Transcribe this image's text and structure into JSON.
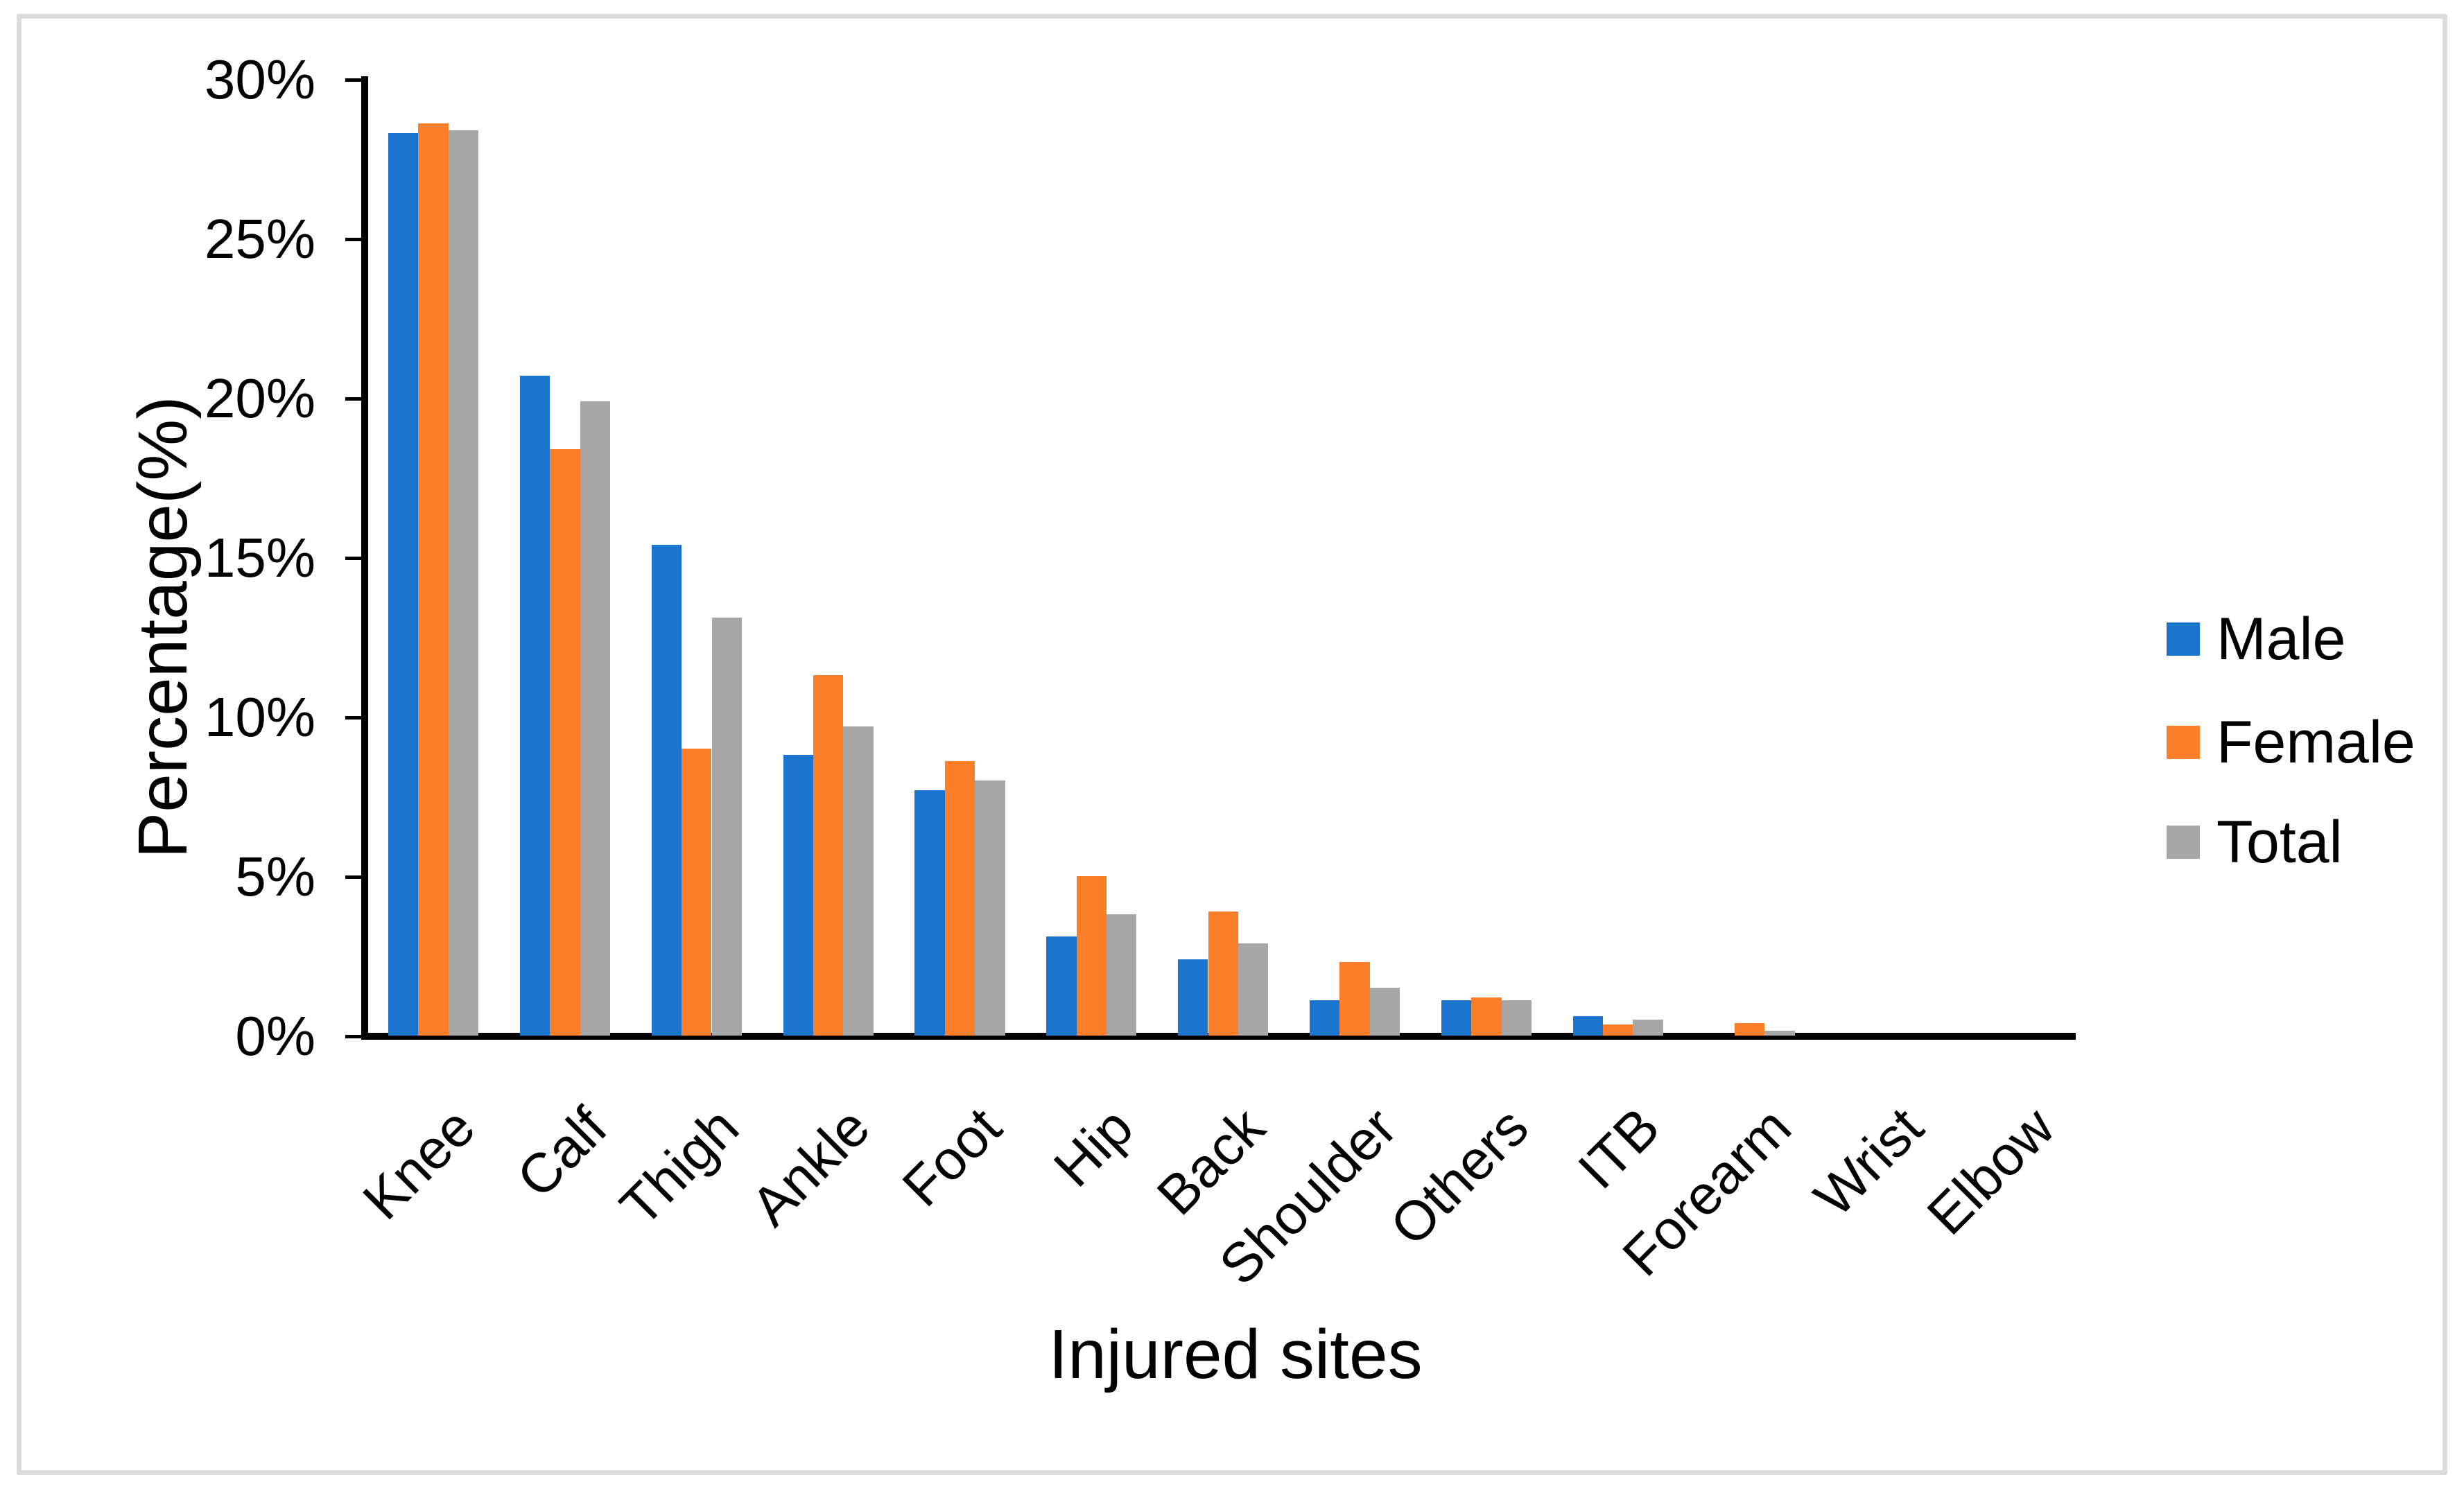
{
  "frame": {
    "border_color": "#DBDBDB",
    "background": "#FFFFFF"
  },
  "chart_data": {
    "type": "bar",
    "title": "",
    "xlabel": "Injured sites",
    "ylabel": "Percentage(%)",
    "categories": [
      "Knee",
      "Calf",
      "Thigh",
      "Ankle",
      "Foot",
      "Hip",
      "Back",
      "Shoulder",
      "Others",
      "ITB",
      "Forearm",
      "Wrist",
      "Elbow"
    ],
    "series": [
      {
        "name": "Male",
        "color": "#1B75CE",
        "values": [
          28.3,
          20.7,
          15.4,
          8.8,
          7.7,
          3.1,
          2.4,
          1.1,
          1.1,
          0.6,
          0,
          0,
          0
        ]
      },
      {
        "name": "Female",
        "color": "#FB7E28",
        "values": [
          28.6,
          18.4,
          9.0,
          11.3,
          8.6,
          5.0,
          3.9,
          2.3,
          1.2,
          0.35,
          0.4,
          0,
          0
        ]
      },
      {
        "name": "Total",
        "color": "#A6A6A6",
        "values": [
          28.4,
          19.9,
          13.1,
          9.7,
          8.0,
          3.8,
          2.9,
          1.5,
          1.1,
          0.5,
          0.15,
          0,
          0
        ]
      }
    ],
    "ylim": [
      0,
      30
    ],
    "ytick_step": 5,
    "yticks": [
      {
        "value": 0,
        "label": "0%"
      },
      {
        "value": 5,
        "label": "5%"
      },
      {
        "value": 10,
        "label": "10%"
      },
      {
        "value": 15,
        "label": "15%"
      },
      {
        "value": 20,
        "label": "20%"
      },
      {
        "value": 25,
        "label": "25%"
      },
      {
        "value": 30,
        "label": "30%"
      }
    ],
    "grid": false,
    "legend_position": "right",
    "axis_color": "#000000",
    "text_color": "#000000"
  }
}
